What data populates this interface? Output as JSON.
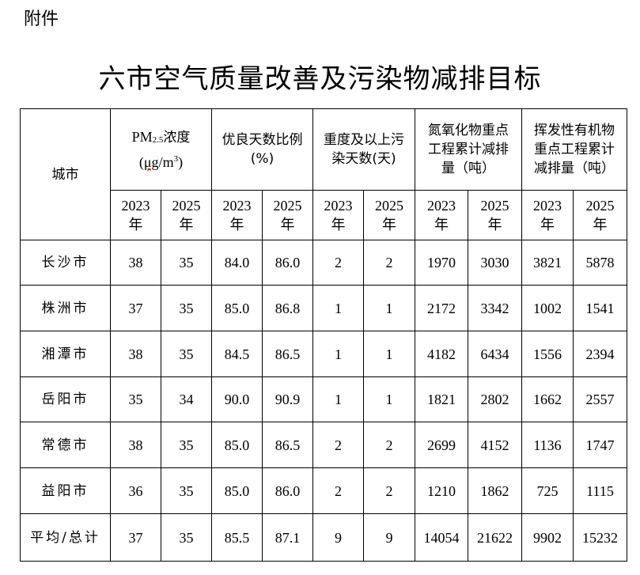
{
  "attachment_label": "附件",
  "title": "六市空气质量改善及污染物减排目标",
  "table": {
    "city_header": "城市",
    "pm25_header": {
      "prefix": "PM",
      "sub": "2.5",
      "suffix": "浓度",
      "unit_open": "(",
      "unit_ug": "μg",
      "unit_mid": "/m",
      "unit_sup": "3",
      "unit_close": ")"
    },
    "group_headers": [
      "优良天数比例(%)",
      "重度及以上污染天数(天)",
      "氮氧化物重点工程累计减排量（吨）",
      "挥发性有机物重点工程累计减排量（吨）"
    ],
    "year_headers": [
      "2023年",
      "2025年",
      "2023年",
      "2025年",
      "2023年",
      "2025年",
      "2023年",
      "2025年",
      "2023年",
      "2025年"
    ],
    "rows": [
      {
        "city": "长沙市",
        "values": [
          "38",
          "35",
          "84.0",
          "86.0",
          "2",
          "2",
          "1970",
          "3030",
          "3821",
          "5878"
        ]
      },
      {
        "city": "株洲市",
        "values": [
          "37",
          "35",
          "85.0",
          "86.8",
          "1",
          "1",
          "2172",
          "3342",
          "1002",
          "1541"
        ]
      },
      {
        "city": "湘潭市",
        "values": [
          "38",
          "35",
          "84.5",
          "86.5",
          "1",
          "1",
          "4182",
          "6434",
          "1556",
          "2394"
        ]
      },
      {
        "city": "岳阳市",
        "values": [
          "35",
          "34",
          "90.0",
          "90.9",
          "1",
          "1",
          "1821",
          "2802",
          "1662",
          "2557"
        ]
      },
      {
        "city": "常德市",
        "values": [
          "38",
          "35",
          "85.0",
          "86.5",
          "2",
          "2",
          "2699",
          "4152",
          "1136",
          "1747"
        ]
      },
      {
        "city": "益阳市",
        "values": [
          "36",
          "35",
          "85.0",
          "86.0",
          "2",
          "2",
          "1210",
          "1862",
          "725",
          "1115"
        ]
      },
      {
        "city": "平均/总计",
        "values": [
          "37",
          "35",
          "85.5",
          "87.1",
          "9",
          "9",
          "14054",
          "21622",
          "9902",
          "15232"
        ]
      }
    ]
  }
}
